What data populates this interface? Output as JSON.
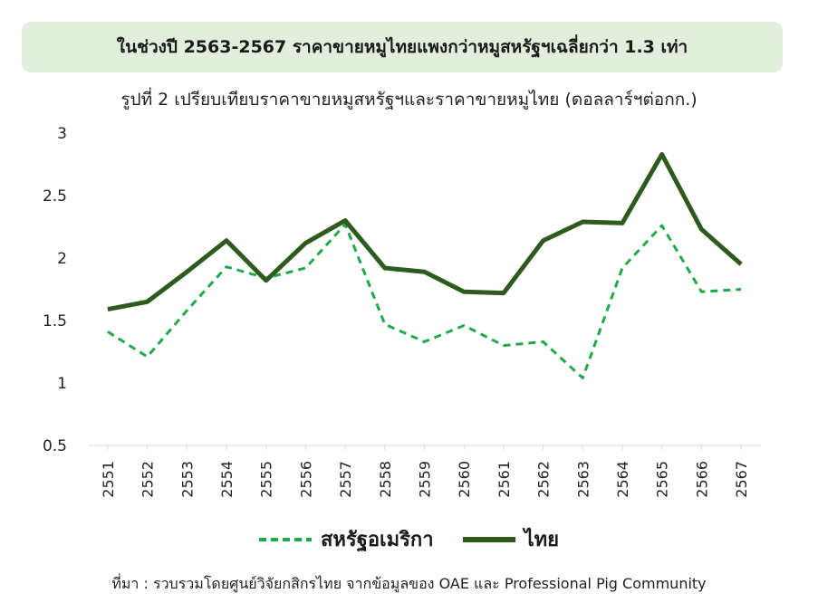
{
  "banner": {
    "title": "ในช่วงปี 2563-2567 ราคาขายหมูไทยแพงกว่าหมูสหรัฐฯเฉลี่ยกว่า 1.3 เท่า"
  },
  "chart_data": {
    "type": "line",
    "title": "รูปที่ 2 เปรียบเทียบราคาขายหมูสหรัฐฯและราคาขายหมูไทย (ดอลลาร์ฯต่อกก.)",
    "categories": [
      "2551",
      "2552",
      "2553",
      "2554",
      "2555",
      "2556",
      "2557",
      "2558",
      "2559",
      "2560",
      "2561",
      "2562",
      "2563",
      "2564",
      "2565",
      "2566",
      "2567"
    ],
    "ylim": [
      0.5,
      3
    ],
    "yticks": [
      0.5,
      1,
      1.5,
      2,
      2.5,
      3
    ],
    "grid": false,
    "legend_position": "bottom",
    "series": [
      {
        "name": "สหรัฐอเมริกา",
        "color": "#1faa4a",
        "style": "dashed",
        "values": [
          1.41,
          1.21,
          1.58,
          1.93,
          1.84,
          1.92,
          2.27,
          1.47,
          1.33,
          1.46,
          1.3,
          1.33,
          1.04,
          1.92,
          2.26,
          1.73,
          1.75
        ]
      },
      {
        "name": "ไทย",
        "color": "#2e5a1e",
        "style": "solid",
        "values": [
          1.59,
          1.65,
          1.89,
          2.14,
          1.82,
          2.12,
          2.3,
          1.92,
          1.89,
          1.73,
          1.72,
          2.14,
          2.29,
          2.28,
          2.83,
          2.23,
          1.95
        ]
      }
    ]
  },
  "source": "ที่มา : รวบรวมโดยศูนย์วิจัยกสิกรไทย จากข้อมูลของ OAE และ Professional Pig Community"
}
